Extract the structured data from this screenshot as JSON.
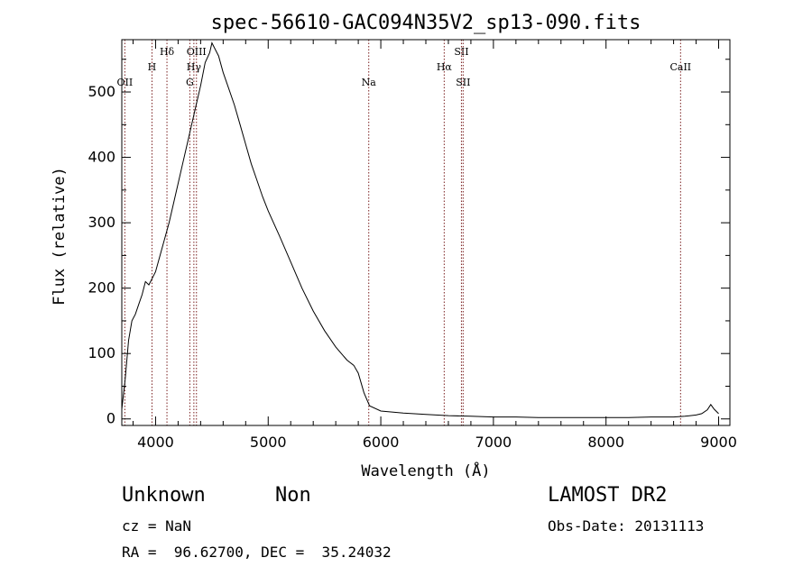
{
  "title": "spec-56610-GAC094N35V2_sp13-090.fits",
  "info": {
    "class": "Unknown",
    "subclass": "Non",
    "cz": "cz = NaN",
    "radec": "RA =  96.62700, DEC =  35.24032",
    "survey": "LAMOST DR2",
    "obs_date": "Obs-Date: 20131113"
  },
  "colors": {
    "spectrum": "#000000",
    "line_markers": "#7a1f1f",
    "axes": "#000000"
  },
  "chart_data": {
    "type": "line",
    "title": "spec-56610-GAC094N35V2_sp13-090.fits",
    "xlabel": "Wavelength (Å)",
    "ylabel": "Flux (relative)",
    "xlim": [
      3700,
      9100
    ],
    "ylim": [
      -10,
      580
    ],
    "xticks": [
      4000,
      5000,
      6000,
      7000,
      8000,
      9000
    ],
    "yticks": [
      0,
      100,
      200,
      300,
      400,
      500
    ],
    "grid": false,
    "series": [
      {
        "x": [
          3700,
          3730,
          3760,
          3790,
          3820,
          3850,
          3880,
          3910,
          3940,
          3970,
          4000,
          4040,
          4080,
          4120,
          4160,
          4200,
          4240,
          4280,
          4320,
          4360,
          4400,
          4440,
          4480,
          4500,
          4530,
          4560,
          4600,
          4650,
          4700,
          4750,
          4800,
          4850,
          4900,
          4950,
          5000,
          5100,
          5200,
          5300,
          5400,
          5500,
          5600,
          5700,
          5760,
          5800,
          5850,
          5900,
          6000,
          6200,
          6400,
          6600,
          6800,
          7000,
          7200,
          7400,
          7600,
          7800,
          8000,
          8200,
          8400,
          8600,
          8700,
          8800,
          8850,
          8900,
          8930,
          8960,
          9000
        ],
        "y": [
          15,
          60,
          120,
          150,
          160,
          175,
          190,
          210,
          205,
          215,
          225,
          250,
          275,
          300,
          330,
          360,
          390,
          420,
          450,
          480,
          510,
          545,
          560,
          575,
          565,
          555,
          530,
          505,
          480,
          450,
          420,
          390,
          365,
          340,
          318,
          280,
          240,
          200,
          165,
          135,
          110,
          90,
          82,
          70,
          40,
          20,
          12,
          9,
          7,
          5,
          4,
          3,
          3,
          2,
          2,
          2,
          2,
          2,
          3,
          3,
          4,
          6,
          8,
          14,
          22,
          15,
          8
        ]
      }
    ],
    "line_markers": [
      {
        "label": "OII",
        "x": 3727
      },
      {
        "label": "H",
        "x": 3968
      },
      {
        "label": "Hδ",
        "x": 4101
      },
      {
        "label": "G",
        "x": 4304
      },
      {
        "label": "Hγ",
        "x": 4340
      },
      {
        "label": "OIII",
        "x": 4363
      },
      {
        "label": "Na",
        "x": 5893
      },
      {
        "label": "Hα",
        "x": 6563
      },
      {
        "label": "SII",
        "x": 6716
      },
      {
        "label": "SII",
        "x": 6731
      },
      {
        "label": "CaII",
        "x": 8662
      }
    ]
  }
}
